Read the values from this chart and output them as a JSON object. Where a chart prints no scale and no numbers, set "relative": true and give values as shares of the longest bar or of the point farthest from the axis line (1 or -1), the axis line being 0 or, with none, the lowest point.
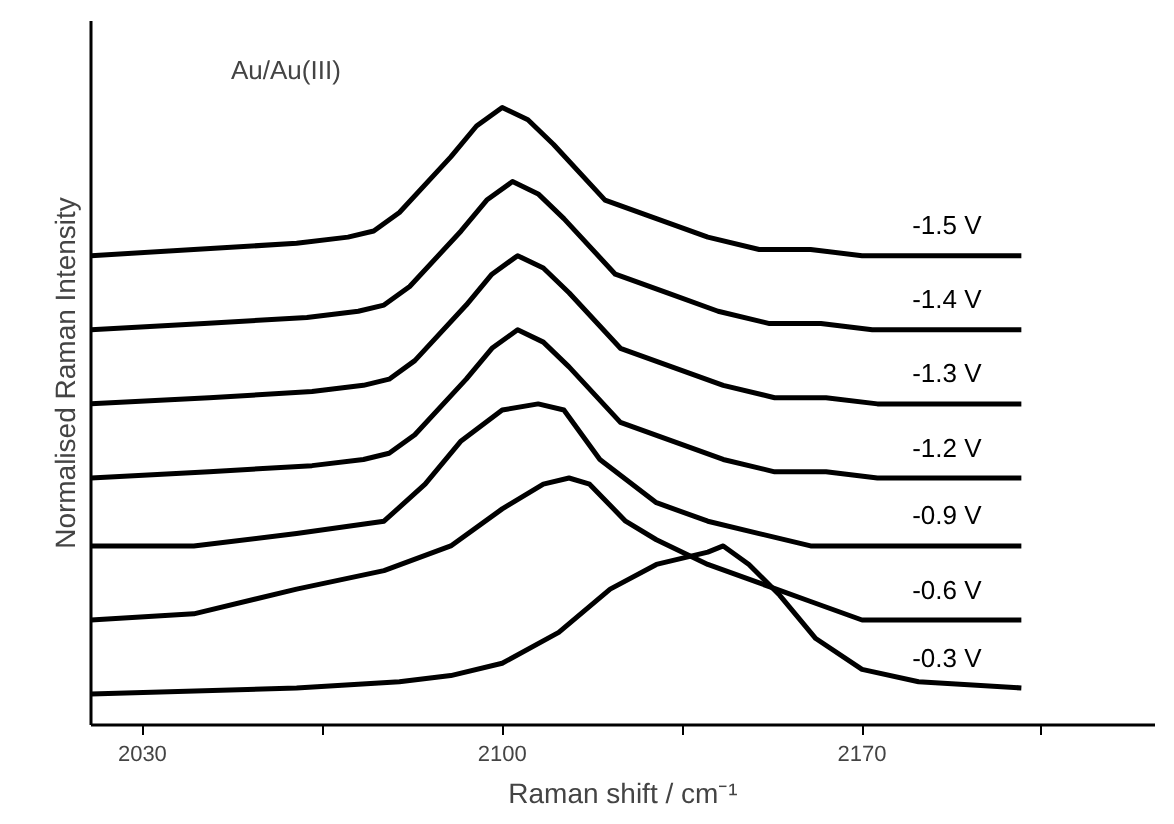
{
  "chart_data": {
    "type": "line",
    "relative": true,
    "xlabel": "Raman shift / cm⁻¹",
    "ylabel": "Normalised Raman Intensity",
    "annotations": [
      "Au/Au(III)"
    ],
    "xlim": [
      2020,
      2227
    ],
    "xticks": [
      2030,
      {
        "value": 2065,
        "label": null
      },
      2100,
      {
        "value": 2135,
        "label": null
      },
      2170,
      {
        "value": 2205,
        "label": null
      }
    ],
    "grid": false,
    "legend": false,
    "marker": "none",
    "line_style": "solid",
    "series": [
      {
        "name": "-1.5 V",
        "color": "#000000",
        "x": [
          2020,
          2040,
          2060,
          2070,
          2075,
          2080,
          2090,
          2095,
          2100,
          2105,
          2110,
          2120,
          2130,
          2140,
          2150,
          2160,
          2170,
          2201
        ],
        "values": [
          0.76,
          0.77,
          0.78,
          0.79,
          0.8,
          0.83,
          0.92,
          0.97,
          1.0,
          0.98,
          0.94,
          0.85,
          0.82,
          0.79,
          0.77,
          0.77,
          0.76,
          0.76
        ]
      },
      {
        "name": "-1.4 V",
        "color": "#000000",
        "x": [
          2020,
          2042,
          2062,
          2072,
          2077,
          2082,
          2092,
          2097,
          2102,
          2107,
          2112,
          2122,
          2132,
          2142,
          2152,
          2162,
          2172,
          2201
        ],
        "values": [
          0.64,
          0.65,
          0.66,
          0.67,
          0.68,
          0.71,
          0.8,
          0.85,
          0.88,
          0.86,
          0.82,
          0.73,
          0.7,
          0.67,
          0.65,
          0.65,
          0.64,
          0.64
        ]
      },
      {
        "name": "-1.3 V",
        "color": "#000000",
        "x": [
          2020,
          2043,
          2063,
          2073,
          2078,
          2083,
          2093,
          2098,
          2103,
          2108,
          2113,
          2123,
          2133,
          2143,
          2153,
          2163,
          2173,
          2201
        ],
        "values": [
          0.52,
          0.53,
          0.54,
          0.55,
          0.56,
          0.59,
          0.68,
          0.73,
          0.76,
          0.74,
          0.7,
          0.61,
          0.58,
          0.55,
          0.53,
          0.53,
          0.52,
          0.52
        ]
      },
      {
        "name": "-1.2 V",
        "color": "#000000",
        "x": [
          2020,
          2043,
          2063,
          2073,
          2078,
          2083,
          2093,
          2098,
          2103,
          2108,
          2113,
          2123,
          2133,
          2143,
          2153,
          2163,
          2173,
          2201
        ],
        "values": [
          0.4,
          0.41,
          0.42,
          0.43,
          0.44,
          0.47,
          0.56,
          0.61,
          0.64,
          0.62,
          0.58,
          0.49,
          0.46,
          0.43,
          0.41,
          0.41,
          0.4,
          0.4
        ]
      },
      {
        "name": "-0.9 V",
        "color": "#000000",
        "x": [
          2020,
          2040,
          2060,
          2077,
          2085,
          2092,
          2100,
          2107,
          2112,
          2119,
          2130,
          2140,
          2150,
          2160,
          2175,
          2201
        ],
        "values": [
          0.29,
          0.29,
          0.31,
          0.33,
          0.39,
          0.46,
          0.51,
          0.52,
          0.51,
          0.43,
          0.36,
          0.33,
          0.31,
          0.29,
          0.29,
          0.29
        ]
      },
      {
        "name": "-0.6 V",
        "color": "#000000",
        "x": [
          2020,
          2040,
          2060,
          2077,
          2090,
          2100,
          2108,
          2113,
          2117,
          2124,
          2130,
          2140,
          2150,
          2160,
          2170,
          2201
        ],
        "values": [
          0.17,
          0.18,
          0.22,
          0.25,
          0.29,
          0.35,
          0.39,
          0.4,
          0.39,
          0.33,
          0.3,
          0.26,
          0.23,
          0.2,
          0.17,
          0.17
        ]
      },
      {
        "name": "-0.3 V",
        "color": "#000000",
        "x": [
          2020,
          2060,
          2080,
          2090,
          2100,
          2111,
          2121,
          2130,
          2140,
          2143,
          2148,
          2154,
          2161,
          2170,
          2181,
          2201
        ],
        "values": [
          0.05,
          0.06,
          0.07,
          0.08,
          0.1,
          0.15,
          0.22,
          0.26,
          0.28,
          0.29,
          0.26,
          0.21,
          0.14,
          0.09,
          0.07,
          0.06
        ]
      }
    ]
  }
}
